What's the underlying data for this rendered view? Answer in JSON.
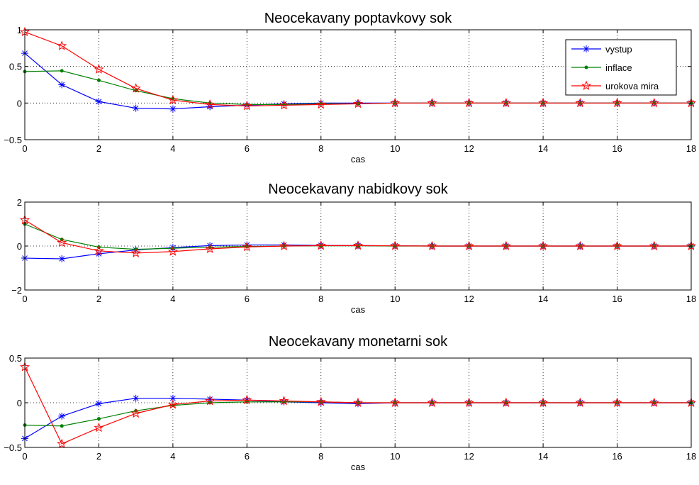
{
  "chart_data": [
    {
      "type": "line",
      "title": "Neocekavany poptavkovy sok",
      "xlabel": "cas",
      "ylabel": "",
      "xlim": [
        0,
        18
      ],
      "ylim": [
        -0.5,
        1
      ],
      "xticks": [
        "0",
        "2",
        "4",
        "6",
        "8",
        "10",
        "12",
        "14",
        "16",
        "18"
      ],
      "yticks": [
        "−0.5",
        "0",
        "0.5",
        "1"
      ],
      "grid": true,
      "legend_position": "top-right",
      "x": [
        0,
        1,
        2,
        3,
        4,
        5,
        6,
        7,
        8,
        9,
        10,
        11,
        12,
        13,
        14,
        15,
        16,
        17,
        18
      ],
      "series": [
        {
          "name": "vystup",
          "color": "#0000ff",
          "marker": "asterisk",
          "values": [
            0.68,
            0.25,
            0.02,
            -0.07,
            -0.08,
            -0.05,
            -0.03,
            -0.01,
            0.0,
            0.0,
            0,
            0,
            0,
            0,
            0,
            0,
            0,
            0,
            0
          ]
        },
        {
          "name": "inflace",
          "color": "#008000",
          "marker": "dot",
          "values": [
            0.43,
            0.44,
            0.31,
            0.17,
            0.06,
            0.0,
            -0.02,
            -0.02,
            -0.01,
            -0.01,
            0,
            0,
            0,
            0,
            0,
            0,
            0,
            0,
            0
          ]
        },
        {
          "name": "urokova mira",
          "color": "#ff0000",
          "marker": "star",
          "values": [
            0.97,
            0.78,
            0.46,
            0.2,
            0.04,
            -0.02,
            -0.04,
            -0.03,
            -0.02,
            -0.01,
            0,
            0,
            0,
            0,
            0,
            0,
            0,
            0,
            0
          ]
        }
      ]
    },
    {
      "type": "line",
      "title": "Neocekavany nabidkovy sok",
      "xlabel": "cas",
      "ylabel": "",
      "xlim": [
        0,
        18
      ],
      "ylim": [
        -2,
        2
      ],
      "xticks": [
        "0",
        "2",
        "4",
        "6",
        "8",
        "10",
        "12",
        "14",
        "16",
        "18"
      ],
      "yticks": [
        "−2",
        "0",
        "2"
      ],
      "grid": true,
      "x": [
        0,
        1,
        2,
        3,
        4,
        5,
        6,
        7,
        8,
        9,
        10,
        11,
        12,
        13,
        14,
        15,
        16,
        17,
        18
      ],
      "series": [
        {
          "color": "#0000ff",
          "marker": "asterisk",
          "values": [
            -0.55,
            -0.58,
            -0.35,
            -0.18,
            -0.07,
            0.02,
            0.05,
            0.05,
            0.03,
            0.02,
            0.01,
            0,
            0,
            0,
            0,
            0,
            0,
            0,
            0
          ]
        },
        {
          "color": "#008000",
          "marker": "dot",
          "values": [
            1.0,
            0.3,
            -0.05,
            -0.15,
            -0.1,
            -0.05,
            -0.02,
            0.0,
            0.01,
            0.01,
            0,
            0,
            0,
            0,
            0,
            0,
            0,
            0,
            0
          ]
        },
        {
          "color": "#ff0000",
          "marker": "star",
          "values": [
            1.18,
            0.15,
            -0.22,
            -0.32,
            -0.25,
            -0.13,
            -0.04,
            0.0,
            0.02,
            0.02,
            0.01,
            0,
            0,
            0,
            0,
            0,
            0,
            0,
            0
          ]
        }
      ]
    },
    {
      "type": "line",
      "title": "Neocekavany monetarni sok",
      "xlabel": "cas",
      "ylabel": "",
      "xlim": [
        0,
        18
      ],
      "ylim": [
        -0.5,
        0.5
      ],
      "xticks": [
        "0",
        "2",
        "4",
        "6",
        "8",
        "10",
        "12",
        "14",
        "16",
        "18"
      ],
      "yticks": [
        "−0.5",
        "0",
        "0.5"
      ],
      "grid": true,
      "x": [
        0,
        1,
        2,
        3,
        4,
        5,
        6,
        7,
        8,
        9,
        10,
        11,
        12,
        13,
        14,
        15,
        16,
        17,
        18
      ],
      "series": [
        {
          "color": "#0000ff",
          "marker": "asterisk",
          "values": [
            -0.4,
            -0.15,
            -0.01,
            0.05,
            0.05,
            0.04,
            0.03,
            0.01,
            0.0,
            -0.01,
            0,
            0,
            0,
            0,
            0,
            0,
            0,
            0,
            0
          ]
        },
        {
          "color": "#008000",
          "marker": "dot",
          "values": [
            -0.25,
            -0.26,
            -0.18,
            -0.09,
            -0.03,
            0.0,
            0.01,
            0.01,
            0.01,
            0.0,
            0,
            0,
            0,
            0,
            0,
            0,
            0,
            0,
            0
          ]
        },
        {
          "color": "#ff0000",
          "marker": "star",
          "values": [
            0.4,
            -0.46,
            -0.28,
            -0.12,
            -0.02,
            0.02,
            0.03,
            0.02,
            0.01,
            0.0,
            0,
            0,
            0,
            0,
            0,
            0,
            0,
            0,
            0
          ]
        }
      ]
    }
  ]
}
